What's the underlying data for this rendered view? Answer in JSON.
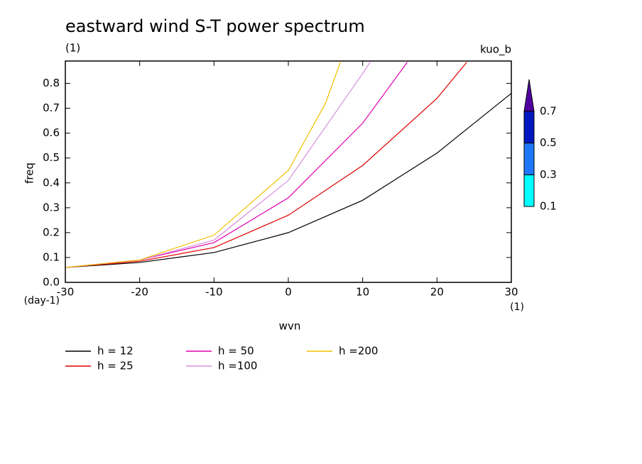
{
  "chart_data": {
    "type": "line",
    "title": "eastward wind S-T power spectrum",
    "subtitle": "(1)",
    "corner_label": "kuo_b",
    "xlabel": "wvn",
    "ylabel": "freq",
    "x_unit": "(1)",
    "y_unit": "(day-1)",
    "xlim": [
      -30,
      30
    ],
    "ylim": [
      0,
      0.89
    ],
    "xticks": [
      -30,
      -20,
      -10,
      0,
      10,
      20,
      30
    ],
    "yticks": [
      {
        "value": 0,
        "label": "0.0"
      },
      0.1,
      0.2,
      0.3,
      0.4,
      0.5,
      0.6,
      0.7,
      0.8
    ],
    "series": [
      {
        "name": "h = 12",
        "color": "#000000",
        "x": [
          -30,
          -20,
          -10,
          0,
          10,
          20,
          30
        ],
        "values": [
          0.06,
          0.08,
          0.12,
          0.2,
          0.33,
          0.52,
          0.76
        ]
      },
      {
        "name": "h = 25",
        "color": "#e00000",
        "x": [
          -30,
          -20,
          -10,
          0,
          10,
          20,
          24
        ],
        "values": [
          0.06,
          0.085,
          0.14,
          0.27,
          0.47,
          0.74,
          0.885
        ]
      },
      {
        "name": "h = 50",
        "color": "#e000b0",
        "x": [
          -30,
          -20,
          -10,
          0,
          10,
          16
        ],
        "values": [
          0.06,
          0.09,
          0.16,
          0.34,
          0.64,
          0.885
        ]
      },
      {
        "name": "h =100",
        "color": "#d890e0",
        "x": [
          -30,
          -20,
          -10,
          0,
          10,
          11
        ],
        "values": [
          0.06,
          0.09,
          0.17,
          0.41,
          0.84,
          0.885
        ]
      },
      {
        "name": "h =200",
        "color": "#f0c000",
        "x": [
          -30,
          -20,
          -10,
          0,
          5,
          7
        ],
        "values": [
          0.06,
          0.09,
          0.19,
          0.45,
          0.72,
          0.885
        ]
      }
    ],
    "colorbar": {
      "levels": [
        0.1,
        0.3,
        0.5,
        0.7
      ],
      "colors": [
        "#00ffff",
        "#1e78ff",
        "#0018c0",
        "#5000a0"
      ]
    }
  }
}
